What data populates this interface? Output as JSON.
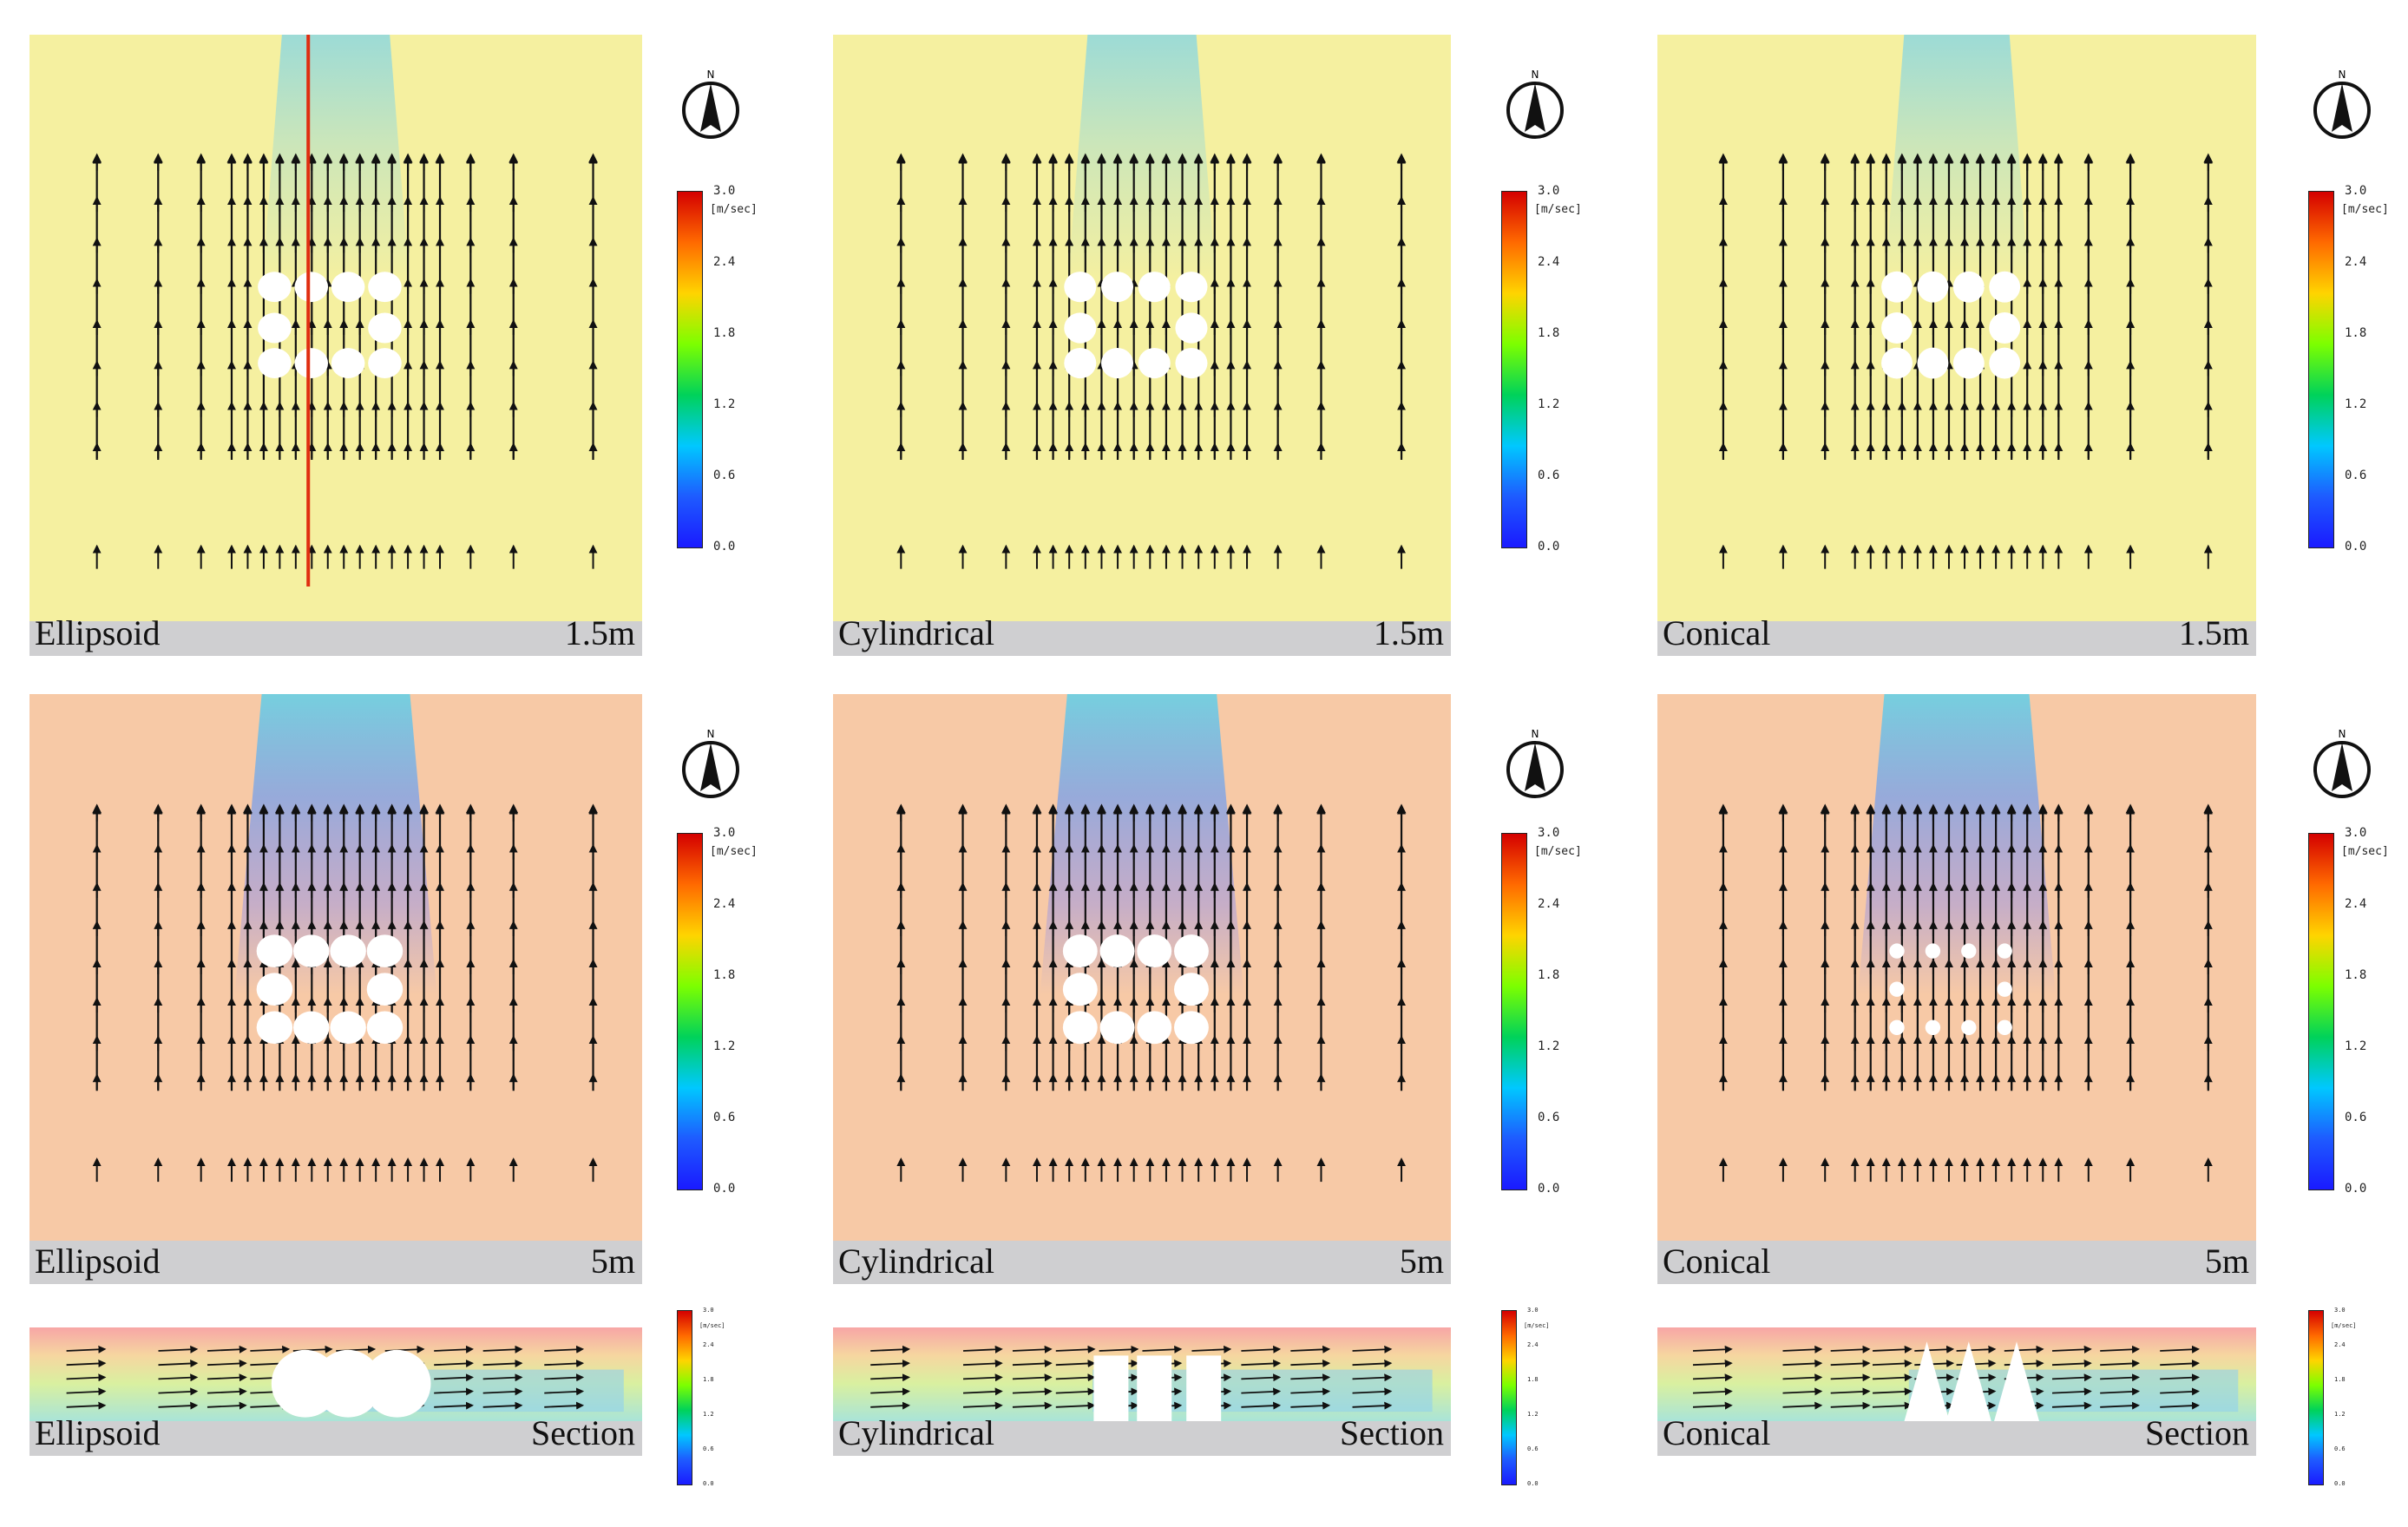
{
  "figure": {
    "rows": [
      {
        "kind": "plan",
        "height_label": "1.5m",
        "panels": [
          {
            "shape": "Ellipsoid",
            "caption_left": "Ellipsoid",
            "caption_right": "1.5m",
            "section_line": true
          },
          {
            "shape": "Cylindrical",
            "caption_left": "Cylindrical",
            "caption_right": "1.5m",
            "section_line": false
          },
          {
            "shape": "Conical",
            "caption_left": "Conical",
            "caption_right": "1.5m",
            "section_line": false
          }
        ]
      },
      {
        "kind": "plan",
        "height_label": "5m",
        "panels": [
          {
            "shape": "Ellipsoid",
            "caption_left": "Ellipsoid",
            "caption_right": "5m"
          },
          {
            "shape": "Cylindrical",
            "caption_left": "Cylindrical",
            "caption_right": "5m"
          },
          {
            "shape": "Conical",
            "caption_left": "Conical",
            "caption_right": "5m"
          }
        ]
      },
      {
        "kind": "section",
        "panels": [
          {
            "shape": "Ellipsoid",
            "caption_left": "Ellipsoid",
            "caption_right": "Section"
          },
          {
            "shape": "Cylindrical",
            "caption_left": "Cylindrical",
            "caption_right": "Section"
          },
          {
            "shape": "Conical",
            "caption_left": "Conical",
            "caption_right": "Section"
          }
        ]
      }
    ],
    "legend": {
      "unit": "[m/sec]",
      "ticks": [
        "3.0",
        "2.4",
        "1.8",
        "1.2",
        "0.6",
        "0.0"
      ],
      "colors": [
        "#d40000",
        "#ff6a00",
        "#ffd400",
        "#7cff00",
        "#00d25a",
        "#00c8ff",
        "#1e5bff",
        "#1a1aff"
      ]
    },
    "compass": {
      "label": "N"
    },
    "colors": {
      "background_row1": "#f5f0a0",
      "background_row2": "#f7c9a6",
      "caption_bg": "#cfcfd1",
      "section_line": "#e02d10",
      "wake": "#7fd4e8"
    }
  }
}
